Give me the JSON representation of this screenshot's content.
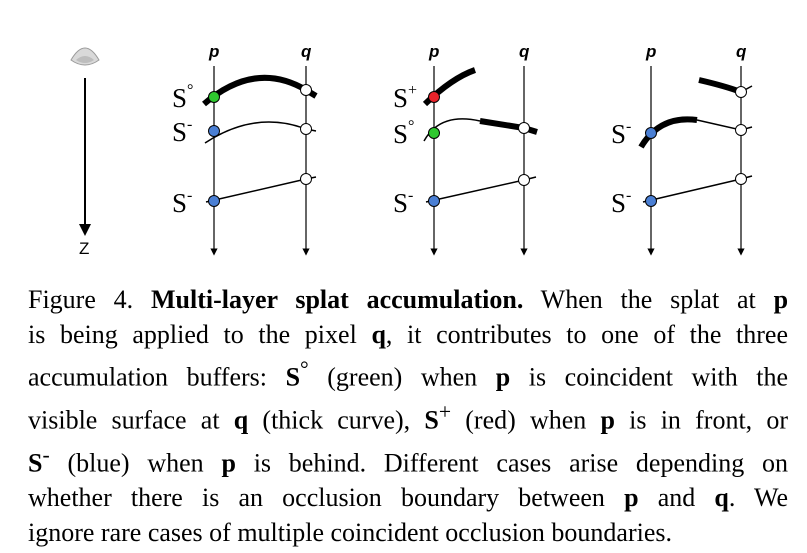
{
  "figure": {
    "panels": [
      {
        "axis_labels": [
          "p",
          "q"
        ],
        "buffer_labels": [
          {
            "text": "S",
            "sup": "°"
          },
          {
            "text": "S",
            "sup": "-"
          },
          {
            "text": "S",
            "sup": "-"
          }
        ],
        "points": [
          {
            "color": "#2ec82e"
          },
          {
            "color": "#4a7fd4"
          },
          {
            "color": "#4a7fd4"
          },
          {
            "color": "#ffffff"
          },
          {
            "color": "#ffffff"
          },
          {
            "color": "#ffffff"
          }
        ]
      },
      {
        "axis_labels": [
          "p",
          "q"
        ],
        "buffer_labels": [
          {
            "text": "S",
            "sup": "+"
          },
          {
            "text": "S",
            "sup": "°"
          },
          {
            "text": "S",
            "sup": "-"
          }
        ],
        "points": [
          {
            "color": "#e8232a"
          },
          {
            "color": "#2ec82e"
          },
          {
            "color": "#4a7fd4"
          },
          {
            "color": "#ffffff"
          },
          {
            "color": "#ffffff"
          }
        ]
      },
      {
        "axis_labels": [
          "p",
          "q"
        ],
        "buffer_labels": [
          {
            "text": "S",
            "sup": "-"
          },
          {
            "text": "S",
            "sup": "-"
          }
        ],
        "points": [
          {
            "color": "#4a7fd4"
          },
          {
            "color": "#4a7fd4"
          },
          {
            "color": "#ffffff"
          },
          {
            "color": "#ffffff"
          },
          {
            "color": "#ffffff"
          }
        ]
      }
    ],
    "z_label": "Z",
    "icons": [
      "eye-icon"
    ]
  },
  "caption": {
    "prefix": "Figure 4.",
    "title": "Multi-layer splat accumulation.",
    "t1": "When the splat at",
    "p": "p",
    "q": "q",
    "t2": "is being applied to the pixel",
    "t3": ", it contributes to one of the three",
    "t4": "accumulation buffers:",
    "S": "S",
    "sup_zero": "°",
    "sup_plus": "+",
    "sup_minus": "-",
    "t5": "(green) when",
    "t6": "is coincident with the",
    "t7": "visible surface at",
    "t8": "(thick curve),",
    "t9": "(red) when",
    "t10": "is in front, or",
    "t11": "(blue) when",
    "t12": "is behind.  Different cases arise depending on",
    "t13": "whether there is an occlusion boundary between",
    "t14": "and",
    "t15": ".  We",
    "t16": "ignore rare cases of multiple coincident occlusion boundaries."
  }
}
